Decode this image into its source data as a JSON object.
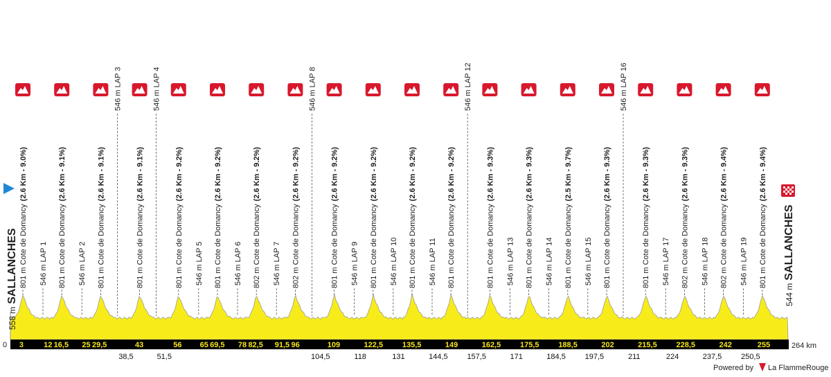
{
  "start": {
    "altitude": "558 m",
    "name": "SALLANCHES"
  },
  "finish": {
    "altitude": "544 m",
    "name": "SALLANCHES"
  },
  "distance_start": "0",
  "distance_end": "264 km",
  "km_markers_top": [
    "3",
    "12",
    "16,5",
    "25",
    "29,5",
    "43",
    "56",
    "65",
    "69,5",
    "78",
    "82,5",
    "91,5",
    "96",
    "109",
    "122,5",
    "135,5",
    "149",
    "162,5",
    "175,5",
    "188,5",
    "202",
    "215,5",
    "228,5",
    "242",
    "255"
  ],
  "km_markers_bottom": [
    "38,5",
    "51,5",
    "104,5",
    "118",
    "131",
    "144,5",
    "157,5",
    "171",
    "184,5",
    "197,5",
    "211",
    "224",
    "237,5",
    "250,5"
  ],
  "climbs": [
    {
      "label": "801 m Cote de Domancy",
      "detail": "(2.6 Km - 9.0%)"
    },
    {
      "label": "801 m Cote de Domancy",
      "detail": "(2.6 Km - 9.1%)"
    },
    {
      "label": "801 m Cote de Domancy",
      "detail": "(2.6 Km - 9.1%)"
    },
    {
      "label": "801 m Cote de Domancy",
      "detail": "(2.6 Km - 9.1%)"
    },
    {
      "label": "801 m Cote de Domancy",
      "detail": "(2.6 Km - 9.2%)"
    },
    {
      "label": "801 m Cote de Domancy",
      "detail": "(2.6 Km - 9.2%)"
    },
    {
      "label": "802 m Cote de Domancy",
      "detail": "(2.6 Km - 9.2%)"
    },
    {
      "label": "802 m Cote de Domancy",
      "detail": "(2.6 Km - 9.2%)"
    },
    {
      "label": "801 m Cote de Domancy",
      "detail": "(2.6 Km - 9.2%)"
    },
    {
      "label": "801 m Cote de Domancy",
      "detail": "(2.6 Km - 9.2%)"
    },
    {
      "label": "801 m Cote de Domancy",
      "detail": "(2.6 Km - 9.2%)"
    },
    {
      "label": "801 m Cote de Domancy",
      "detail": "(2.6 Km - 9.2%)"
    },
    {
      "label": "801 m Cote de Domancy",
      "detail": "(2.6 Km - 9.3%)"
    },
    {
      "label": "801 m Cote de Domancy",
      "detail": "(2.6 Km - 9.3%)"
    },
    {
      "label": "801 m Cote de Domancy",
      "detail": "(2.5 Km - 9.7%)"
    },
    {
      "label": "801 m Cote de Domancy",
      "detail": "(2.6 Km - 9.3%)"
    },
    {
      "label": "801 m Cote de Domancy",
      "detail": "(2.6 Km - 9.3%)"
    },
    {
      "label": "802 m Cote de Domancy",
      "detail": "(2.6 Km - 9.3%)"
    },
    {
      "label": "802 m Cote de Domancy",
      "detail": "(2.6 Km - 9.4%)"
    },
    {
      "label": "801 m Cote de Domancy",
      "detail": "(2.6 Km - 9.4%)"
    }
  ],
  "laps": [
    "546 m LAP 1",
    "546 m LAP 2",
    "546 m LAP 3",
    "546 m LAP 4",
    "546 m LAP 5",
    "546 m LAP 6",
    "546 m LAP 7",
    "546 m LAP 8",
    "546 m LAP 9",
    "546 m LAP 10",
    "546 m LAP 11",
    "546 m LAP 12",
    "546 m LAP 13",
    "546 m LAP 14",
    "546 m LAP 15",
    "546 m LAP 16",
    "546 m LAP 17",
    "546 m LAP 18",
    "546 m LAP 19"
  ],
  "footer": {
    "powered_by": "Powered by",
    "brand": "La FlammeRouge"
  }
}
